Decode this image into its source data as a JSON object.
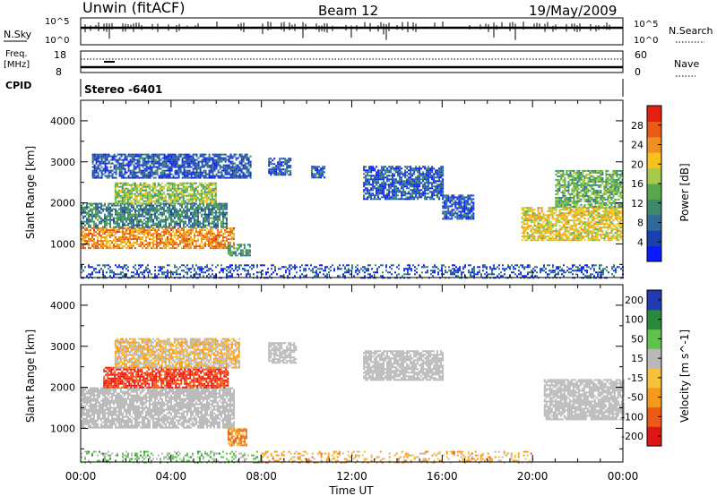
{
  "header": {
    "title": "Unwin (fitACF)",
    "beam": "Beam 12",
    "date": "19/May/2009"
  },
  "nsky_panel": {
    "left_label": "N.Sky",
    "left_ticks": [
      "10^5",
      "10^0"
    ],
    "right_ticks": [
      "10^5",
      "10^0"
    ],
    "right_label": "N.Search"
  },
  "freq_panel": {
    "label_line1": "Freq.",
    "label_line2": "[MHz]",
    "left_ticks": [
      "18",
      "8"
    ],
    "right_ticks": [
      "60",
      "0"
    ],
    "right_label": "Nave"
  },
  "cpid_panel": {
    "label": "CPID",
    "value": "Stereo -6401"
  },
  "colors": {
    "power": [
      "#0a1aff",
      "#1a3fb0",
      "#2f6a9a",
      "#3c8a6a",
      "#57a84a",
      "#a8c84a",
      "#f7c21c",
      "#f09020",
      "#ec5a18",
      "#e32012"
    ],
    "velocity": [
      "#2239b5",
      "#2a8a3c",
      "#5fc24a",
      "#b9b9b9",
      "#f6c23a",
      "#f39a1d",
      "#ec5a18",
      "#e01515"
    ]
  },
  "chart_data": [
    {
      "type": "heatmap",
      "title": "",
      "xlabel": "Time UT",
      "ylabel": "Slant Range [km]",
      "xlim": [
        "00:00",
        "24:00"
      ],
      "ylim": [
        180,
        4500
      ],
      "x_ticks": [
        "00:00",
        "04:00",
        "08:00",
        "12:00",
        "16:00",
        "20:00",
        "00:00"
      ],
      "y_ticks": [
        1000,
        2000,
        3000,
        4000
      ],
      "colorbar": {
        "label": "Power [dB]",
        "range": [
          0,
          32
        ],
        "ticks": [
          4,
          8,
          12,
          16,
          20,
          24,
          28
        ]
      },
      "regions": [
        {
          "t": [
            0.0,
            6.8
          ],
          "range": [
            900,
            1400
          ],
          "power_db": 24
        },
        {
          "t": [
            0.0,
            6.5
          ],
          "range": [
            1400,
            2000
          ],
          "power_db": 10
        },
        {
          "t": [
            1.5,
            6.0
          ],
          "range": [
            2000,
            2500
          ],
          "power_db": 16
        },
        {
          "t": [
            0.5,
            7.5
          ],
          "range": [
            2600,
            3200
          ],
          "power_db": 6
        },
        {
          "t": [
            6.5,
            7.5
          ],
          "range": [
            700,
            1000
          ],
          "power_db": 12
        },
        {
          "t": [
            8.3,
            9.3
          ],
          "range": [
            2700,
            3100
          ],
          "power_db": 6
        },
        {
          "t": [
            10.2,
            10.8
          ],
          "range": [
            2600,
            2900
          ],
          "power_db": 6
        },
        {
          "t": [
            12.5,
            16.0
          ],
          "range": [
            2100,
            2900
          ],
          "power_db": 6
        },
        {
          "t": [
            16.0,
            17.4
          ],
          "range": [
            1600,
            2200
          ],
          "power_db": 6
        },
        {
          "t": [
            19.5,
            24.0
          ],
          "range": [
            1100,
            1900
          ],
          "power_db": 20
        },
        {
          "t": [
            21.0,
            24.0
          ],
          "range": [
            1900,
            2800
          ],
          "power_db": 14
        },
        {
          "t": [
            0.0,
            24.0
          ],
          "range": [
            180,
            500
          ],
          "power_db": 6
        }
      ]
    },
    {
      "type": "heatmap",
      "title": "",
      "xlabel": "Time UT",
      "ylabel": "Slant Range [km]",
      "xlim": [
        "00:00",
        "24:00"
      ],
      "ylim": [
        180,
        4500
      ],
      "x_ticks": [
        "00:00",
        "04:00",
        "08:00",
        "12:00",
        "16:00",
        "20:00",
        "00:00"
      ],
      "y_ticks": [
        1000,
        2000,
        3000,
        4000
      ],
      "colorbar": {
        "label": "Velocity [m s^-1]",
        "range": [
          -250,
          250
        ],
        "ticks": [
          200,
          100,
          50,
          15,
          -15,
          -50,
          -100,
          -200
        ]
      },
      "regions": [
        {
          "t": [
            0.0,
            6.8
          ],
          "range": [
            1000,
            2000
          ],
          "velocity": 0
        },
        {
          "t": [
            1.0,
            6.5
          ],
          "range": [
            2000,
            2500
          ],
          "velocity": -150
        },
        {
          "t": [
            1.5,
            7.0
          ],
          "range": [
            2500,
            3200
          ],
          "velocity": -20
        },
        {
          "t": [
            6.5,
            7.3
          ],
          "range": [
            600,
            1000
          ],
          "velocity": -60
        },
        {
          "t": [
            8.3,
            9.5
          ],
          "range": [
            2600,
            3100
          ],
          "velocity": 0
        },
        {
          "t": [
            12.5,
            16.0
          ],
          "range": [
            2200,
            2900
          ],
          "velocity": 0
        },
        {
          "t": [
            20.5,
            24.0
          ],
          "range": [
            1200,
            2200
          ],
          "velocity": 0
        },
        {
          "t": [
            8.0,
            20.0
          ],
          "range": [
            180,
            450
          ],
          "velocity": -40
        },
        {
          "t": [
            0.0,
            8.0
          ],
          "range": [
            180,
            450
          ],
          "velocity": 40
        }
      ]
    }
  ]
}
